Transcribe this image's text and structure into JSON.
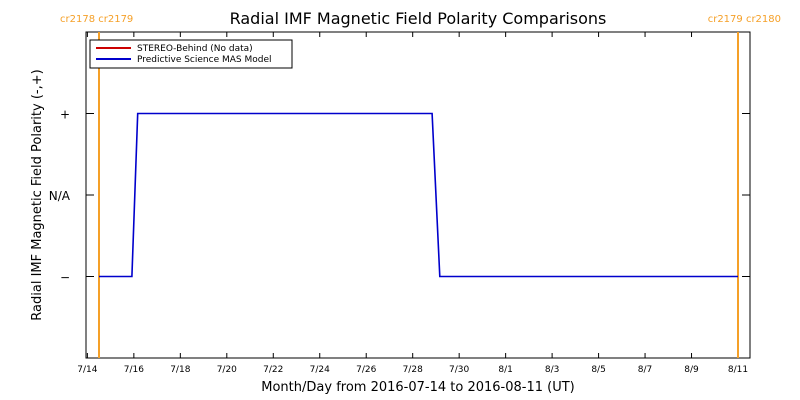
{
  "chart_data": {
    "type": "line",
    "title": "Radial IMF Magnetic Field Polarity Comparisons",
    "xlabel": "Month/Day from 2016-07-14 to 2016-08-11 (UT)",
    "ylabel": "Radial IMF Magnetic Field Polarity (-,+)",
    "x_start": "2016-07-14",
    "x_end": "2016-08-11",
    "x_ticks": [
      "7/14",
      "7/16",
      "7/18",
      "7/20",
      "7/22",
      "7/24",
      "7/26",
      "7/28",
      "7/30",
      "8/1",
      "8/3",
      "8/5",
      "8/7",
      "8/9",
      "8/11"
    ],
    "y_ticks": [
      {
        "value": -1,
        "label": "−"
      },
      {
        "value": 0,
        "label": "N/A"
      },
      {
        "value": 1,
        "label": "+"
      }
    ],
    "ylim": [
      -2,
      2
    ],
    "carrington_markers": [
      {
        "date": "2016-07-14T12:00",
        "label": "cr2178 cr2179",
        "color": "#f5a028"
      },
      {
        "date": "2016-08-11T00:00",
        "label": "cr2179 cr2180",
        "color": "#f5a028"
      }
    ],
    "legend_position": "top-left",
    "series": [
      {
        "name": "STEREO-Behind (No data)",
        "color": "#cc0000",
        "points": []
      },
      {
        "name": "Predictive Science MAS Model",
        "color": "#0000cc",
        "points": [
          {
            "x": "2016-07-14T12:00",
            "y": -1
          },
          {
            "x": "2016-07-15T22:00",
            "y": -1
          },
          {
            "x": "2016-07-16T04:00",
            "y": 1
          },
          {
            "x": "2016-07-28T20:00",
            "y": 1
          },
          {
            "x": "2016-07-29T04:00",
            "y": -1
          },
          {
            "x": "2016-08-11T00:00",
            "y": -1
          }
        ]
      }
    ]
  }
}
